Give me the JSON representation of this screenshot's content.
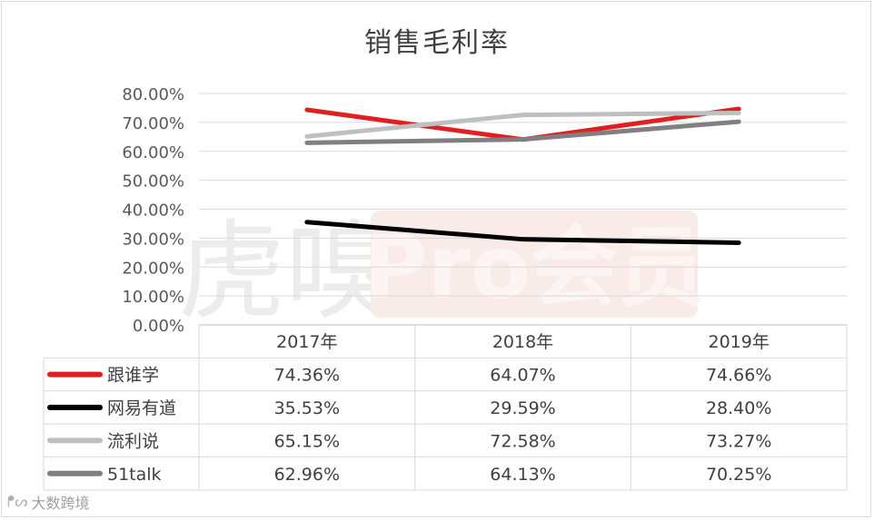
{
  "chart_data": {
    "type": "line",
    "title": "销售毛利率",
    "categories": [
      "2017年",
      "2018年",
      "2019年"
    ],
    "ylim": [
      0,
      80
    ],
    "y_ticks": [
      "0.00%",
      "10.00%",
      "20.00%",
      "30.00%",
      "40.00%",
      "50.00%",
      "60.00%",
      "70.00%",
      "80.00%"
    ],
    "grid": true,
    "legend": "data-table",
    "series": [
      {
        "name": "跟谁学",
        "color": "#e02020",
        "values": [
          74.36,
          64.07,
          74.66
        ],
        "labels": [
          "74.36%",
          "64.07%",
          "74.66%"
        ]
      },
      {
        "name": "网易有道",
        "color": "#000000",
        "values": [
          35.53,
          29.59,
          28.4
        ],
        "labels": [
          "35.53%",
          "29.59%",
          "28.40%"
        ]
      },
      {
        "name": "流利说",
        "color": "#bfbfbf",
        "values": [
          65.15,
          72.58,
          73.27
        ],
        "labels": [
          "65.15%",
          "72.58%",
          "73.27%"
        ]
      },
      {
        "name": "51talk",
        "color": "#808080",
        "values": [
          62.96,
          64.13,
          70.25
        ],
        "labels": [
          "62.96%",
          "64.13%",
          "70.25%"
        ]
      }
    ]
  },
  "watermark": {
    "brand": "虎嗅",
    "badge": "Pro会员"
  },
  "footer": {
    "brand_text": "大数跨境",
    "mark": "ᖰᔕ"
  }
}
